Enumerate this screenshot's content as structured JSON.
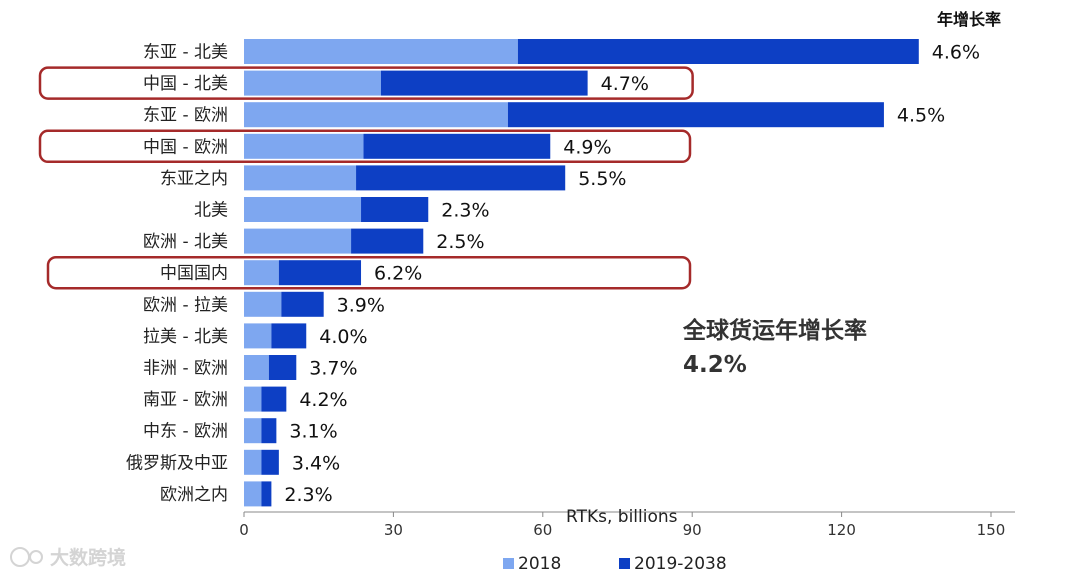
{
  "chart_data": {
    "type": "bar",
    "orientation": "horizontal",
    "stacked": true,
    "categories": [
      "东亚  - 北美",
      "中国 - 北美",
      "东亚 - 欧洲",
      "中国 - 欧洲",
      "东亚之内",
      "北美",
      "欧洲 - 北美",
      "中国国内",
      "欧洲 - 拉美",
      "拉美 - 北美",
      "非洲 - 欧洲",
      "南亚 - 欧洲",
      "中东 - 欧洲",
      "俄罗斯及中亚",
      "欧洲之内"
    ],
    "series": [
      {
        "name": "2018",
        "color": "#7ea7f0",
        "values": [
          55,
          27.5,
          53,
          24,
          22.5,
          23.5,
          21.5,
          7,
          7.5,
          5.5,
          5,
          3.5,
          3.5,
          3.5,
          3.5
        ]
      },
      {
        "name": "2019-2038",
        "color": "#0d3fc4",
        "values": [
          80.5,
          41.5,
          75.5,
          37.5,
          42,
          13.5,
          14.5,
          16.5,
          8.5,
          7,
          5.5,
          5,
          3,
          3.5,
          2
        ]
      }
    ],
    "growth_header": "年增长率",
    "growth_labels": [
      "4.6%",
      "4.7%",
      "4.5%",
      "4.9%",
      "5.5%",
      "2.3%",
      "2.5%",
      "6.2%",
      "3.9%",
      "4.0%",
      "3.7%",
      "4.2%",
      "3.1%",
      "3.4%",
      "2.3%"
    ],
    "highlighted_categories": [
      "中国 - 北美",
      "中国 - 欧洲",
      "中国国内"
    ],
    "x_ticks": [
      "0",
      "30",
      "60",
      "90",
      "120",
      "150"
    ],
    "xlim": [
      0,
      150
    ],
    "xlabel": "RTKs, billions",
    "legend": [
      "2018",
      "2019-2038"
    ],
    "legend_position": "bottom-center",
    "annotation": {
      "line1": "全球货运年增长率",
      "line2": "4.2%"
    },
    "highlight_color": "#a52a2a"
  },
  "watermark": "大数跨境"
}
